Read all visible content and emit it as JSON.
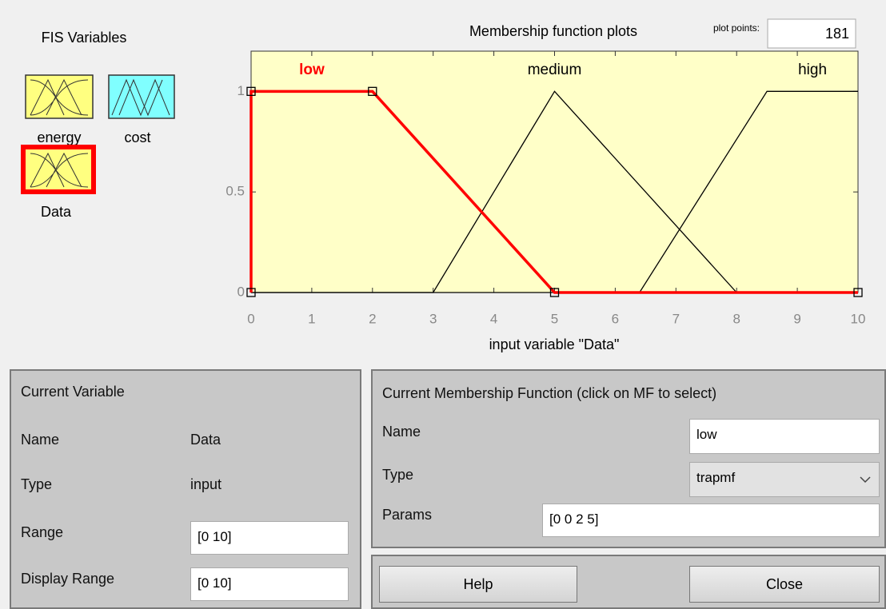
{
  "fis_variables": {
    "title": "FIS Variables",
    "items": [
      {
        "label": "energy"
      },
      {
        "label": "cost"
      },
      {
        "label": "Data"
      }
    ]
  },
  "plot_points": {
    "label": "plot points:",
    "value": "181"
  },
  "chart_data": {
    "type": "line",
    "title": "Membership function plots",
    "x_label": "input variable \"Data\"",
    "xlim": [
      0,
      10
    ],
    "ylim": [
      0,
      1.2
    ],
    "xticks": [
      0,
      1,
      2,
      3,
      4,
      5,
      6,
      7,
      8,
      9,
      10
    ],
    "yticks": [
      0,
      0.5,
      1
    ],
    "series": [
      {
        "name": "low",
        "color": "#ff0000",
        "x": [
          0,
          0,
          2,
          5,
          10
        ],
        "values": [
          0,
          1,
          1,
          0,
          0
        ]
      },
      {
        "name": "medium",
        "color": "#000000",
        "x": [
          0,
          3,
          5,
          8,
          10
        ],
        "values": [
          0,
          0,
          1,
          0,
          0
        ]
      },
      {
        "name": "high",
        "color": "#000000",
        "x": [
          0,
          6.4,
          8.5,
          10
        ],
        "values": [
          0,
          0,
          1,
          1
        ]
      }
    ]
  },
  "current_variable": {
    "title": "Current Variable",
    "name_label": "Name",
    "name": "Data",
    "type_label": "Type",
    "type": "input",
    "range_label": "Range",
    "range": "[0 10]",
    "display_range_label": "Display Range",
    "display_range": "[0 10]"
  },
  "current_mf": {
    "title": "Current Membership Function (click on MF to select)",
    "name_label": "Name",
    "name": "low",
    "type_label": "Type",
    "type": "trapmf",
    "params_label": "Params",
    "params": "[0 0 2 5]"
  },
  "buttons": {
    "help": "Help",
    "close": "Close"
  }
}
